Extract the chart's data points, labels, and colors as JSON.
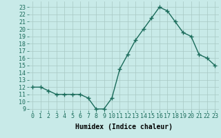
{
  "x": [
    0,
    1,
    2,
    3,
    4,
    5,
    6,
    7,
    8,
    9,
    10,
    11,
    12,
    13,
    14,
    15,
    16,
    17,
    18,
    19,
    20,
    21,
    22,
    23
  ],
  "y": [
    12,
    12,
    11.5,
    11,
    11,
    11,
    11,
    10.5,
    9,
    9,
    10.5,
    14.5,
    16.5,
    18.5,
    20,
    21.5,
    23,
    22.5,
    21,
    19.5,
    19,
    16.5,
    16,
    15
  ],
  "line_color": "#1a6b5a",
  "marker": "+",
  "bg_color": "#c8eae8",
  "grid_color": "#a8c8c4",
  "xlabel": "Humidex (Indice chaleur)",
  "xlim": [
    -0.5,
    23.5
  ],
  "ylim": [
    8.8,
    23.8
  ],
  "yticks": [
    9,
    10,
    11,
    12,
    13,
    14,
    15,
    16,
    17,
    18,
    19,
    20,
    21,
    22,
    23
  ],
  "xticks": [
    0,
    1,
    2,
    3,
    4,
    5,
    6,
    7,
    8,
    9,
    10,
    11,
    12,
    13,
    14,
    15,
    16,
    17,
    18,
    19,
    20,
    21,
    22,
    23
  ],
  "xlabel_fontsize": 7,
  "tick_fontsize": 6,
  "linewidth": 1.0,
  "markersize": 4,
  "markeredgewidth": 1.0
}
